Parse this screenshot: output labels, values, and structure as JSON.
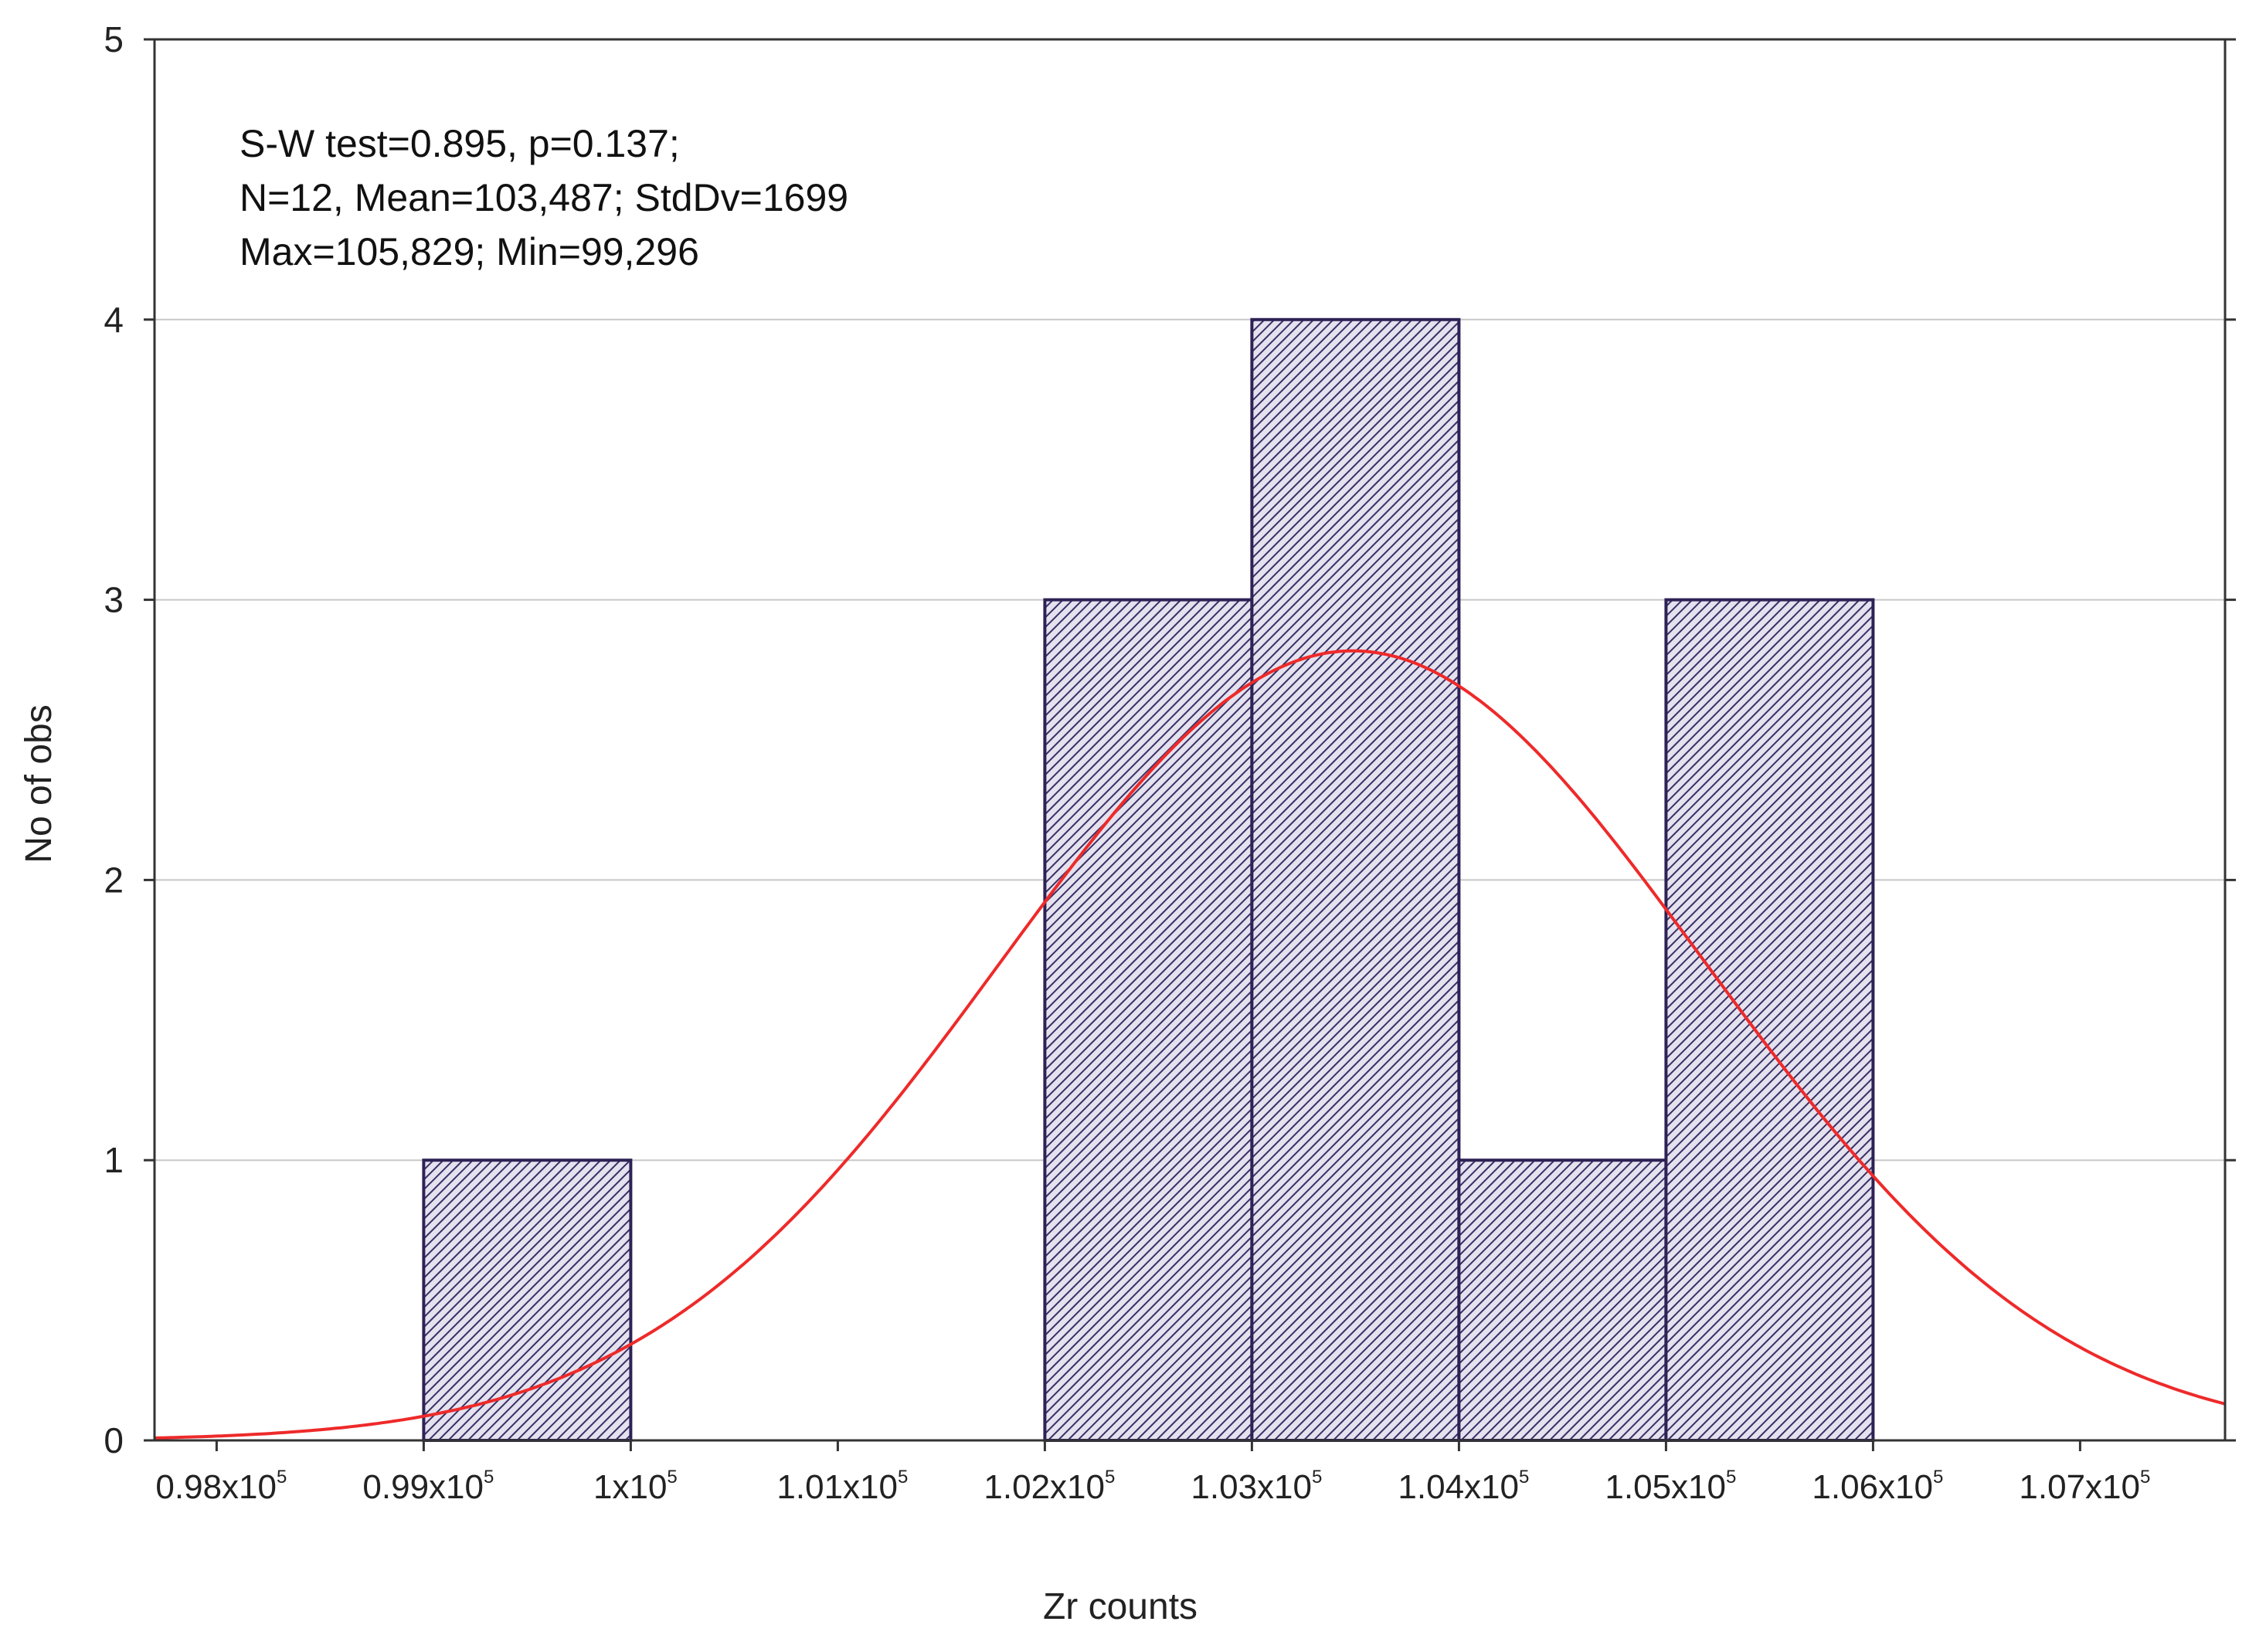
{
  "chart_data": {
    "type": "bar",
    "subtype": "histogram",
    "xlabel": "Zr counts",
    "ylabel": "No of obs",
    "xlim": [
      97700,
      107700
    ],
    "ylim": [
      0,
      5
    ],
    "y_ticks": [
      "0",
      "1",
      "2",
      "3",
      "4",
      "5"
    ],
    "y_tick_values": [
      0,
      1,
      2,
      3,
      4,
      5
    ],
    "x_tick_values": [
      98000,
      99000,
      100000,
      101000,
      102000,
      103000,
      104000,
      105000,
      106000,
      107000
    ],
    "x_tick_labels": [
      {
        "mantissa": "0.98x10",
        "exp": "5"
      },
      {
        "mantissa": "0.99x10",
        "exp": "5"
      },
      {
        "mantissa": "1x10",
        "exp": "5"
      },
      {
        "mantissa": "1.01x10",
        "exp": "5"
      },
      {
        "mantissa": "1.02x10",
        "exp": "5"
      },
      {
        "mantissa": "1.03x10",
        "exp": "5"
      },
      {
        "mantissa": "1.04x10",
        "exp": "5"
      },
      {
        "mantissa": "1.05x10",
        "exp": "5"
      },
      {
        "mantissa": "1.06x10",
        "exp": "5"
      },
      {
        "mantissa": "1.07x10",
        "exp": "5"
      }
    ],
    "bins": [
      {
        "start": 99000,
        "end": 100000,
        "count": 1
      },
      {
        "start": 100000,
        "end": 101000,
        "count": 0
      },
      {
        "start": 101000,
        "end": 102000,
        "count": 0
      },
      {
        "start": 102000,
        "end": 103000,
        "count": 3
      },
      {
        "start": 103000,
        "end": 104000,
        "count": 4
      },
      {
        "start": 104000,
        "end": 105000,
        "count": 1
      },
      {
        "start": 105000,
        "end": 106000,
        "count": 3
      }
    ],
    "normal_fit": {
      "mean": 103487,
      "stddev": 1699,
      "n": 12,
      "bin_width": 1000
    },
    "annotations": [
      "S-W test=0.895, p=0.137;",
      "N=12, Mean=103,487; StdDv=1699",
      "Max=105,829; Min=99,296"
    ],
    "grid": true,
    "colors": {
      "bar_edge": "#2e2255",
      "bar_hatch": "#3a2f66",
      "bar_fill": "#e4e2ee",
      "fit_curve": "#ee2a2a",
      "gridline": "#c8c8c8",
      "axis": "#333333"
    }
  }
}
